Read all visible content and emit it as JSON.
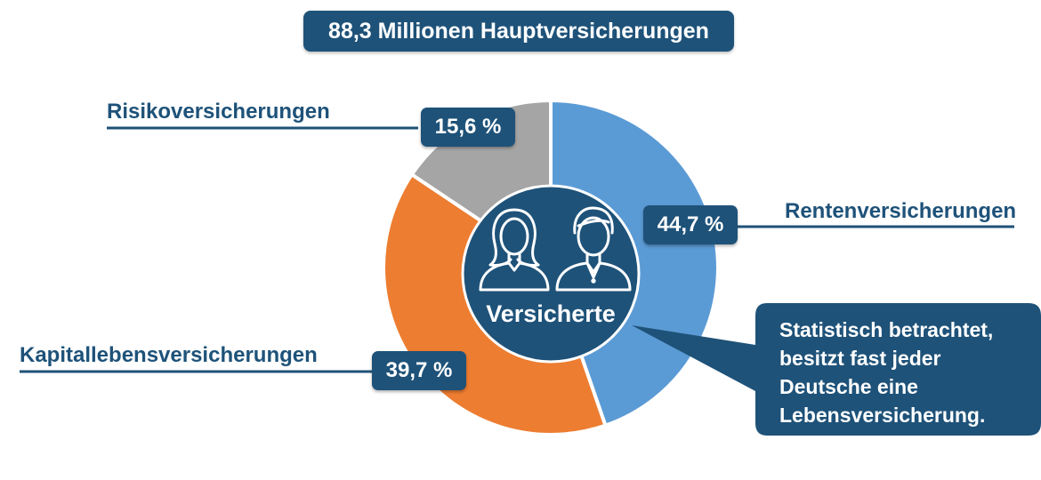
{
  "title": "88,3 Millionen Hauptversicherungen",
  "center_label": "Versicherte",
  "callout": {
    "lines": [
      "Statistisch betrachtet,",
      "besitzt fast jeder",
      "Deutsche eine",
      "Lebensversicherung."
    ]
  },
  "colors": {
    "navy": "#1e5279",
    "renten": "#5b9bd5",
    "kapital": "#ed7d31",
    "risiko": "#a5a5a5"
  },
  "icons": [
    "woman-icon",
    "man-icon"
  ],
  "chart_data": {
    "type": "pie",
    "style": "donut",
    "title": "88,3 Millionen Hauptversicherungen",
    "slices": [
      {
        "label": "Rentenversicherungen",
        "value": 44.7,
        "value_label": "44,7 %",
        "color": "#5b9bd5"
      },
      {
        "label": "Kapitallebensversicherungen",
        "value": 39.7,
        "value_label": "39,7 %",
        "color": "#ed7d31"
      },
      {
        "label": "Risikoversicherungen",
        "value": 15.6,
        "value_label": "15,6 %",
        "color": "#a5a5a5"
      }
    ]
  }
}
